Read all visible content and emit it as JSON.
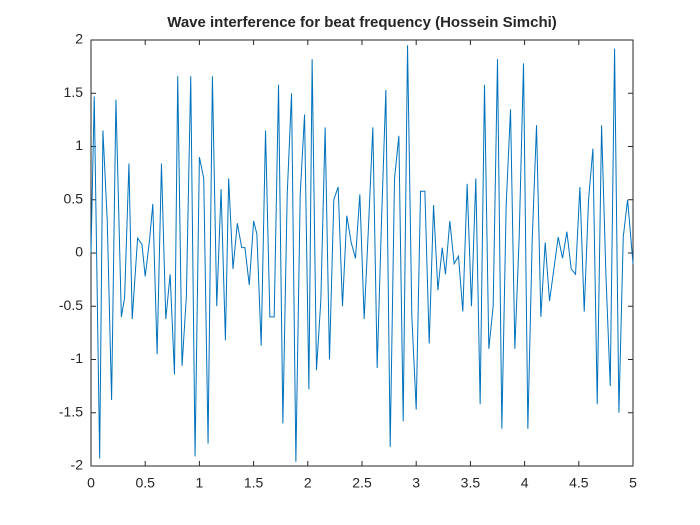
{
  "chart_data": {
    "type": "line",
    "title": "Wave interference for beat frequency (Hossein Simchi)",
    "x": [
      0,
      0.03,
      0.08,
      0.11,
      0.15,
      0.19,
      0.23,
      0.28,
      0.31,
      0.35,
      0.38,
      0.43,
      0.47,
      0.5,
      0.54,
      0.57,
      0.61,
      0.65,
      0.69,
      0.73,
      0.77,
      0.8,
      0.84,
      0.88,
      0.92,
      0.96,
      1.0,
      1.04,
      1.08,
      1.12,
      1.16,
      1.2,
      1.24,
      1.27,
      1.31,
      1.35,
      1.39,
      1.42,
      1.46,
      1.5,
      1.53,
      1.57,
      1.61,
      1.65,
      1.69,
      1.73,
      1.77,
      1.81,
      1.85,
      1.89,
      1.93,
      1.97,
      2.01,
      2.04,
      2.08,
      2.12,
      2.16,
      2.2,
      2.24,
      2.28,
      2.32,
      2.36,
      2.4,
      2.44,
      2.48,
      2.52,
      2.56,
      2.6,
      2.64,
      2.68,
      2.72,
      2.76,
      2.8,
      2.84,
      2.88,
      2.92,
      2.96,
      3.0,
      3.04,
      3.08,
      3.12,
      3.16,
      3.2,
      3.24,
      3.27,
      3.31,
      3.35,
      3.39,
      3.43,
      3.47,
      3.51,
      3.55,
      3.59,
      3.63,
      3.67,
      3.71,
      3.75,
      3.79,
      3.83,
      3.87,
      3.91,
      3.95,
      3.99,
      4.03,
      4.07,
      4.11,
      4.15,
      4.19,
      4.23,
      4.27,
      4.31,
      4.35,
      4.39,
      4.43,
      4.47,
      4.51,
      4.55,
      4.59,
      4.63,
      4.67,
      4.71,
      4.75,
      4.79,
      4.83,
      4.87,
      4.91,
      4.95,
      5.0
    ],
    "series": [
      {
        "color": "#0072bd",
        "values": [
          0,
          1.47,
          -1.93,
          1.15,
          0.3,
          -1.38,
          1.44,
          -0.6,
          -0.42,
          0.84,
          -0.62,
          0.14,
          0.08,
          -0.22,
          0.12,
          0.46,
          -0.95,
          0.84,
          -0.62,
          -0.2,
          -1.14,
          1.66,
          -1.06,
          -0.4,
          1.66,
          -1.91,
          0.9,
          0.7,
          -1.79,
          1.66,
          -0.5,
          0.6,
          -0.82,
          0.7,
          -0.15,
          0.28,
          0.05,
          0.05,
          -0.3,
          0.3,
          0.18,
          -0.87,
          1.15,
          -0.6,
          -0.6,
          1.58,
          -1.6,
          0.55,
          1.5,
          -1.96,
          0.55,
          1.3,
          -1.28,
          1.82,
          -1.1,
          -0.45,
          1.18,
          -1.0,
          0.5,
          0.62,
          -0.5,
          0.35,
          0.1,
          -0.05,
          0.55,
          -0.62,
          0.25,
          1.18,
          -1.08,
          0.3,
          1.53,
          -1.82,
          0.7,
          1.1,
          -1.58,
          1.95,
          -0.6,
          -1.47,
          0.58,
          0.58,
          -0.85,
          0.45,
          -0.35,
          0.05,
          -0.2,
          0.3,
          -0.1,
          -0.03,
          -0.55,
          0.65,
          -0.5,
          0.7,
          -1.42,
          1.58,
          -0.9,
          -0.5,
          1.82,
          -1.65,
          0.45,
          1.35,
          -0.9,
          0.15,
          1.78,
          -1.65,
          0.12,
          1.2,
          -0.6,
          0.1,
          -0.45,
          -0.15,
          0.15,
          -0.05,
          0.2,
          -0.15,
          -0.2,
          0.62,
          -0.55,
          0.5,
          0.98,
          -1.42,
          1.2,
          -0.2,
          -1.25,
          1.92,
          -1.5,
          0.15,
          0.5,
          -0.1
        ]
      }
    ],
    "xlim": [
      0,
      5
    ],
    "xticks": [
      0,
      0.5,
      1,
      1.5,
      2,
      2.5,
      3,
      3.5,
      4,
      4.5,
      5
    ],
    "ylim": [
      -2,
      2
    ],
    "yticks": [
      -2,
      -1.5,
      -1,
      -0.5,
      0,
      0.5,
      1,
      1.5,
      2
    ]
  }
}
